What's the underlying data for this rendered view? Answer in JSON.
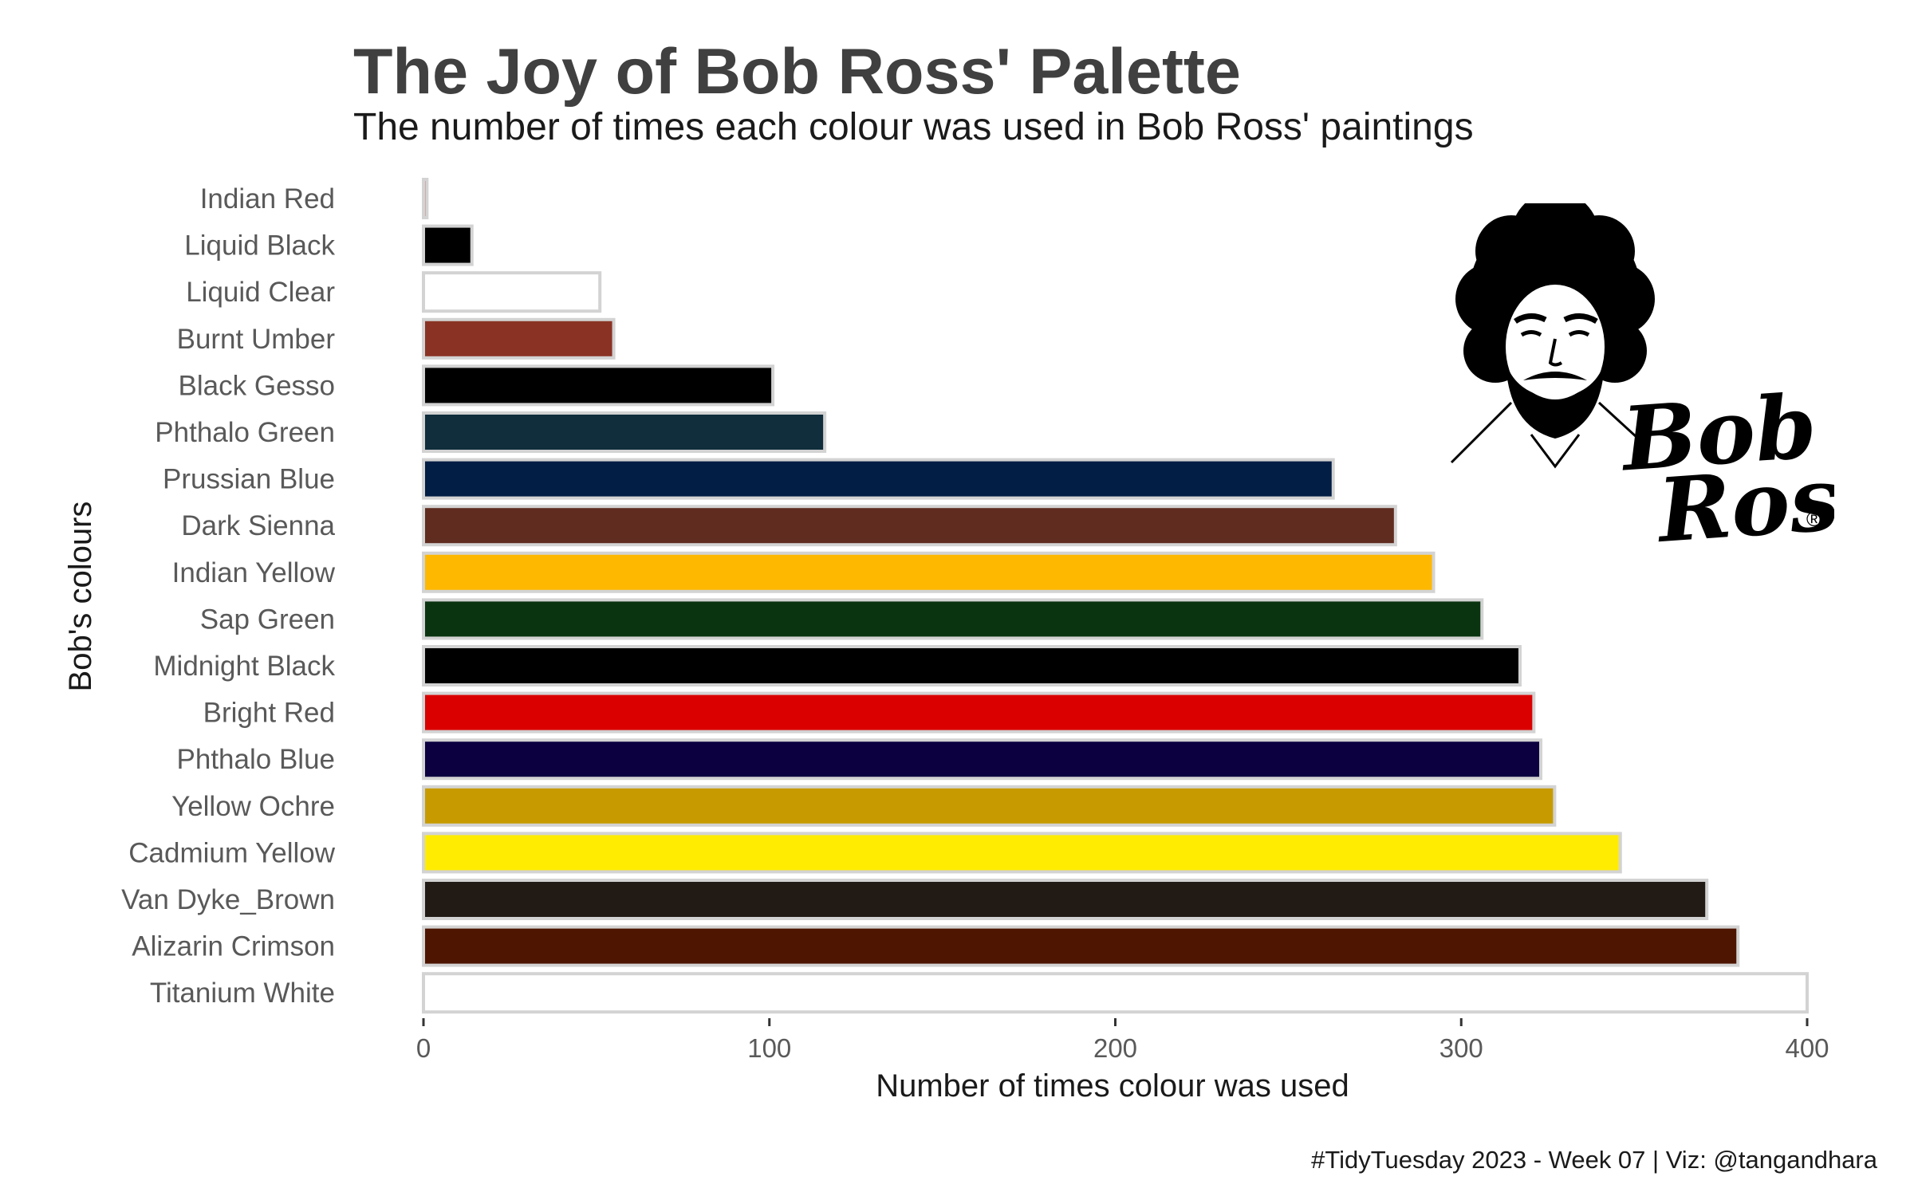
{
  "chart_data": {
    "type": "bar",
    "orientation": "horizontal",
    "title": "The Joy of Bob Ross' Palette",
    "subtitle": "The number of times each colour was used in Bob Ross' paintings",
    "xlabel": "Number of times colour was used",
    "ylabel": "Bob's colours",
    "caption": "#TidyTuesday 2023 - Week 07 | Viz: @tangandhara",
    "xlim": [
      0,
      400
    ],
    "xticks": [
      0,
      100,
      200,
      300,
      400
    ],
    "grid": false,
    "legend": "none",
    "categories": [
      "Indian Red",
      "Liquid Black",
      "Liquid Clear",
      "Burnt Umber",
      "Black Gesso",
      "Phthalo Green",
      "Prussian Blue",
      "Dark Sienna",
      "Indian Yellow",
      "Sap Green",
      "Midnight Black",
      "Bright Red",
      "Phthalo Blue",
      "Yellow Ochre",
      "Cadmium Yellow",
      "Van Dyke_Brown",
      "Alizarin Crimson",
      "Titanium White"
    ],
    "values": [
      1,
      14,
      51,
      55,
      101,
      116,
      263,
      281,
      292,
      306,
      317,
      321,
      323,
      327,
      346,
      371,
      380,
      400
    ],
    "colors": [
      "#CD5C5C",
      "#000000",
      "#FFFFFF",
      "#8A3324",
      "#000000",
      "#102E3C",
      "#021E44",
      "#5F2C1F",
      "#FFB800",
      "#0A3410",
      "#000000",
      "#DB0000",
      "#0C0040",
      "#C79B00",
      "#FFEC00",
      "#221B15",
      "#4E1500",
      "#FFFFFF"
    ],
    "bar_outline_color": "#D3D3D3"
  },
  "logo": {
    "name": "bob-ross-logo",
    "text": "Bob Ross",
    "mark": "®"
  }
}
